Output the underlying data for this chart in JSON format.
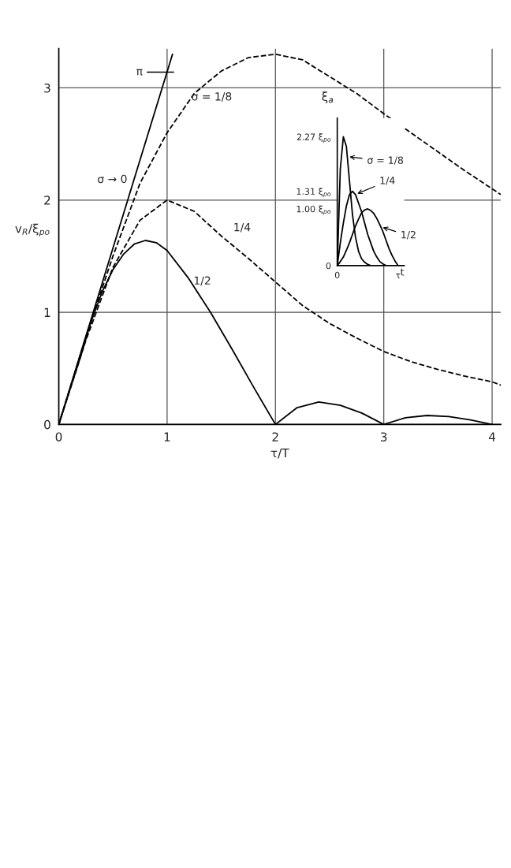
{
  "chart_data": [
    {
      "type": "line",
      "xlabel": "τ/T",
      "ylabel": "v$_{R}$/ξ$_{po}$",
      "xlim": [
        0,
        4.08
      ],
      "ylim": [
        0,
        3.35
      ],
      "xticks": [
        0,
        1,
        2,
        3,
        4
      ],
      "yticks": [
        0,
        1,
        2,
        3
      ],
      "grid": true,
      "ref_lines": [
        {
          "axis": "y",
          "value": 3.14,
          "label": "π"
        }
      ],
      "series": [
        {
          "name": "σ → 0",
          "color": "#000000",
          "line_style": "solid",
          "x": [
            0,
            1.05
          ],
          "values": [
            0,
            3.3
          ]
        },
        {
          "name": "σ = 1/8",
          "color": "#000000",
          "line_style": "dashed",
          "x": [
            0,
            0.25,
            0.5,
            0.75,
            1,
            1.25,
            1.5,
            1.75,
            2,
            2.25,
            2.5,
            2.75,
            3,
            3.25,
            3.5,
            3.75,
            4,
            4.08
          ],
          "values": [
            0,
            0.78,
            1.5,
            2.15,
            2.6,
            2.95,
            3.15,
            3.27,
            3.3,
            3.25,
            3.1,
            2.95,
            2.77,
            2.6,
            2.43,
            2.26,
            2.1,
            2.05
          ]
        },
        {
          "name": "1/4",
          "color": "#000000",
          "line_style": "dashed",
          "x": [
            0,
            0.25,
            0.5,
            0.75,
            1,
            1.25,
            1.5,
            1.75,
            2,
            2.25,
            2.5,
            2.75,
            3,
            3.25,
            3.5,
            3.75,
            4,
            4.08
          ],
          "values": [
            0,
            0.75,
            1.4,
            1.82,
            2.0,
            1.9,
            1.68,
            1.48,
            1.27,
            1.06,
            0.9,
            0.77,
            0.65,
            0.56,
            0.49,
            0.43,
            0.38,
            0.35
          ]
        },
        {
          "name": "1/2",
          "color": "#000000",
          "line_style": "solid",
          "x": [
            0,
            0.2,
            0.3,
            0.4,
            0.5,
            0.6,
            0.7,
            0.8,
            0.9,
            1,
            1.2,
            1.4,
            1.6,
            1.8,
            2,
            2.2,
            2.4,
            2.6,
            2.8,
            3,
            3.2,
            3.4,
            3.6,
            3.8,
            4
          ],
          "values": [
            0,
            0.6,
            0.92,
            1.18,
            1.38,
            1.52,
            1.61,
            1.64,
            1.62,
            1.55,
            1.3,
            1.0,
            0.67,
            0.33,
            0,
            0.15,
            0.2,
            0.17,
            0.1,
            0,
            0.06,
            0.08,
            0.07,
            0.04,
            0
          ]
        }
      ]
    },
    {
      "type": "line",
      "xlabel": "t",
      "ylabel": "ξ$_{a}$",
      "categories": [
        "0",
        null,
        null,
        null,
        null,
        null,
        null,
        null,
        null,
        null,
        null,
        null,
        null,
        null,
        null,
        null,
        null,
        null,
        null,
        null,
        "τ",
        null,
        null
      ],
      "ylim": [
        0,
        2.6
      ],
      "legend": "right",
      "yticks": [
        0,
        {
          "value": 1.0,
          "label": "1.00 ξ$_{po}$"
        },
        {
          "value": 1.31,
          "label": "1.31 ξ$_{po}$"
        },
        {
          "value": 2.27,
          "label": "2.27 ξ$_{po}$"
        }
      ],
      "series": [
        {
          "name": "σ = 1/8",
          "color": "#000000",
          "line_style": "solid",
          "values": [
            0,
            1.7,
            2.27,
            2.1,
            1.5,
            0.9,
            0.5,
            0.25,
            0.12,
            0.06,
            0.02,
            0,
            null,
            null,
            null,
            null,
            null,
            null,
            null,
            null,
            null,
            null,
            null
          ]
        },
        {
          "name": "1/4",
          "color": "#000000",
          "line_style": "solid",
          "values": [
            0,
            0.4,
            0.75,
            1.05,
            1.25,
            1.31,
            1.25,
            1.1,
            0.95,
            0.75,
            0.55,
            0.4,
            0.25,
            0.15,
            0.07,
            0.03,
            0,
            null,
            null,
            null,
            null,
            null,
            null
          ]
        },
        {
          "name": "1/2",
          "color": "#000000",
          "line_style": "solid",
          "values": [
            0,
            0.07,
            0.15,
            0.27,
            0.4,
            0.55,
            0.7,
            0.82,
            0.93,
            0.98,
            1.0,
            0.97,
            0.92,
            0.83,
            0.72,
            0.6,
            0.45,
            0.3,
            0.18,
            0.08,
            0,
            null,
            null
          ]
        }
      ]
    }
  ]
}
